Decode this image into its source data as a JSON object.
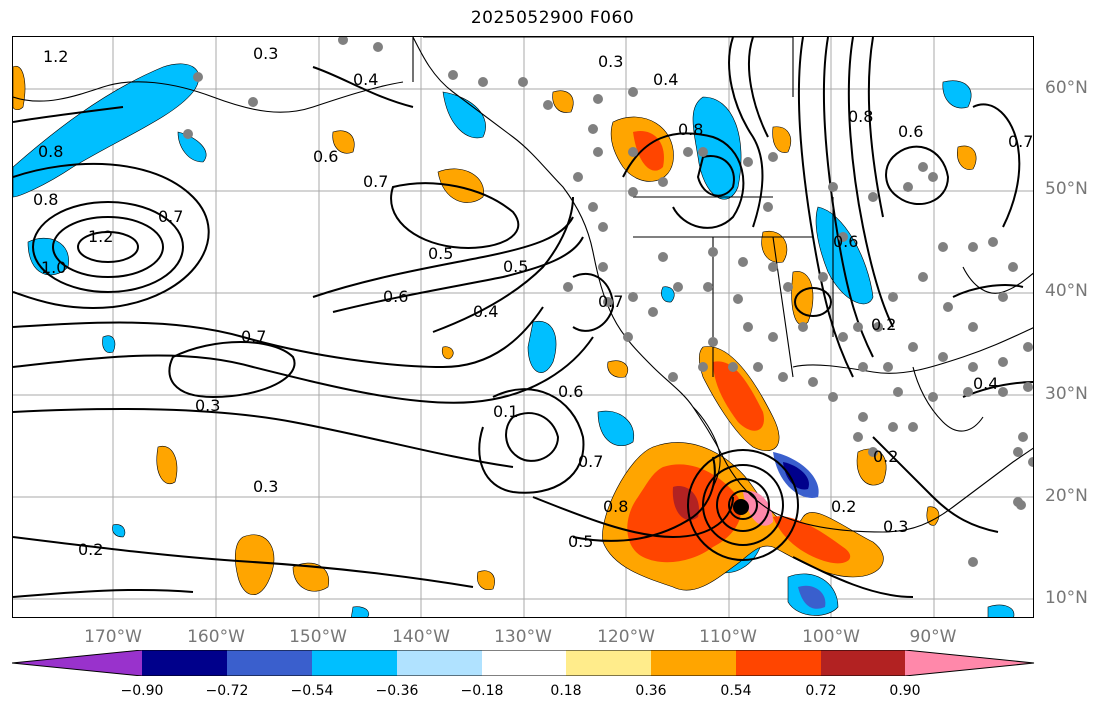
{
  "title": "2025052900 F060",
  "lat_labels": [
    "60°N",
    "50°N",
    "40°N",
    "30°N",
    "20°N",
    "10°N"
  ],
  "lon_labels": [
    "170°W",
    "160°W",
    "150°W",
    "140°W",
    "130°W",
    "120°W",
    "110°W",
    "100°W",
    "90°W"
  ],
  "contour_labels": [
    "1.2",
    "0.3",
    "0.4",
    "0.3",
    "0.4",
    "0.8",
    "0.6",
    "0.7",
    "0.8",
    "0.8",
    "0.8",
    "0.6",
    "0.7",
    "1.2",
    "1.0",
    "0.7",
    "0.6",
    "0.5",
    "0.5",
    "0.6",
    "0.4",
    "0.7",
    "0.3",
    "0.1",
    "0.6",
    "0.7",
    "0.8",
    "0.5",
    "0.3",
    "0.2",
    "0.2",
    "0.2",
    "0.3",
    "0.2",
    "0.4",
    "0.7"
  ],
  "colorbar": {
    "ticks": [
      "−0.90",
      "−0.72",
      "−0.54",
      "−0.36",
      "−0.18",
      "0.18",
      "0.36",
      "0.54",
      "0.72",
      "0.90"
    ],
    "colors": [
      "#9932cc",
      "#00008b",
      "#3a5fcd",
      "#00bfff",
      "#b0e2ff",
      "#ffffff",
      "#ffec8b",
      "#ffa500",
      "#ff4500",
      "#b22222",
      "#ff88aa"
    ]
  },
  "shading_colors": {
    "neg_light": "#b0e2ff",
    "neg_mid": "#00bfff",
    "neg_strong": "#3a5fcd",
    "neg_max": "#00008b",
    "pos_light": "#ffec8b",
    "pos_mid": "#ffa500",
    "pos_strong": "#ff4500",
    "pos_max": "#b22222",
    "pos_extreme": "#ff88aa"
  },
  "markers": {
    "dot_color": "#808080",
    "center_marker_color": "#000000"
  }
}
